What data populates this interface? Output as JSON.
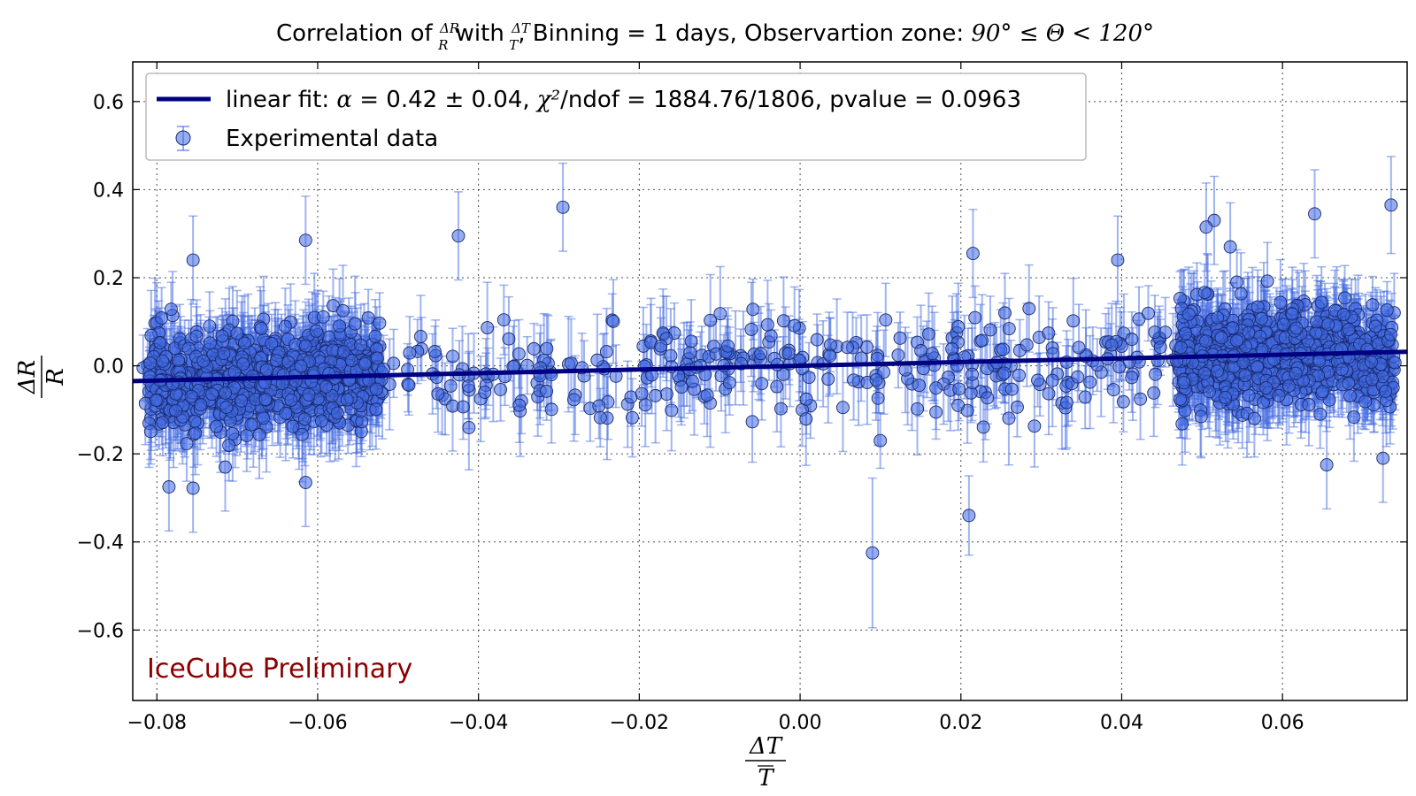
{
  "chart_data": {
    "type": "scatter",
    "title": {
      "prefix": "Correlation of ",
      "frac1_num": "ΔR",
      "frac1_den": "R",
      "with": " with ",
      "frac2_num": "ΔT",
      "frac2_den": "T",
      "middle": ", Binning = 1 days, Observartion zone: ",
      "zone": "90° ≤ Θ < 120°"
    },
    "xlabel": {
      "num": "ΔT",
      "den": "T"
    },
    "ylabel": {
      "num": "ΔR",
      "den": "R"
    },
    "xlim": [
      -0.083,
      0.0755
    ],
    "ylim": [
      -0.76,
      0.69
    ],
    "xticks": [
      -0.08,
      -0.06,
      -0.04,
      -0.02,
      0.0,
      0.02,
      0.04,
      0.06
    ],
    "xtick_labels": [
      "−0.08",
      "−0.06",
      "−0.04",
      "−0.02",
      "0.00",
      "0.02",
      "0.04",
      "0.06"
    ],
    "yticks": [
      0.6,
      0.4,
      0.2,
      0.0,
      -0.2,
      -0.4,
      -0.6
    ],
    "ytick_labels": [
      "0.6",
      "0.4",
      "0.2",
      "0.0",
      "−0.2",
      "−0.4",
      "−0.6"
    ],
    "grid": true,
    "legend_position": "top-left",
    "legend": [
      {
        "name": "linear fit",
        "label_prefix": "linear fit: ",
        "alpha_sym": "α",
        "alpha_text": " = 0.42 ± 0.04, ",
        "chi_sym": "χ²",
        "chi_text": "/ndof = 1884.76/1806, pvalue = 0.0963",
        "color": "#000080"
      },
      {
        "name": "Experimental data",
        "label": "Experimental data",
        "color": "#4169e1"
      }
    ],
    "fit": {
      "slope": 0.42,
      "slope_err": 0.04,
      "intercept": 0.0,
      "chi2": 1884.76,
      "ndof": 1806,
      "pvalue": 0.0963
    },
    "series": [
      {
        "name": "Experimental data",
        "n_points": 1808,
        "x_range": [
          -0.082,
          0.074
        ],
        "y_spread": 0.09,
        "typical_yerr": 0.075,
        "dense_x_ranges": [
          [
            -0.081,
            -0.052
          ],
          [
            0.047,
            0.074
          ]
        ],
        "outliers": [
          {
            "x": -0.0295,
            "y": 0.36,
            "yerr": 0.1
          },
          {
            "x": 0.0735,
            "y": 0.365,
            "yerr": 0.11
          },
          {
            "x": 0.009,
            "y": -0.425,
            "yerr": 0.17
          },
          {
            "x": 0.021,
            "y": -0.34,
            "yerr": 0.09
          },
          {
            "x": -0.0425,
            "y": 0.295,
            "yerr": 0.1
          },
          {
            "x": -0.0615,
            "y": 0.285,
            "yerr": 0.1
          },
          {
            "x": -0.0755,
            "y": 0.24,
            "yerr": 0.1
          },
          {
            "x": 0.0515,
            "y": 0.33,
            "yerr": 0.1
          },
          {
            "x": 0.0505,
            "y": 0.315,
            "yerr": 0.1
          },
          {
            "x": 0.064,
            "y": 0.345,
            "yerr": 0.1
          },
          {
            "x": 0.0395,
            "y": 0.24,
            "yerr": 0.1
          },
          {
            "x": -0.0785,
            "y": -0.275,
            "yerr": 0.1
          },
          {
            "x": -0.0755,
            "y": -0.278,
            "yerr": 0.1
          },
          {
            "x": -0.0615,
            "y": -0.265,
            "yerr": 0.1
          },
          {
            "x": -0.0715,
            "y": -0.23,
            "yerr": 0.1
          },
          {
            "x": 0.0725,
            "y": -0.21,
            "yerr": 0.1
          },
          {
            "x": 0.0655,
            "y": -0.225,
            "yerr": 0.1
          },
          {
            "x": 0.0215,
            "y": 0.255,
            "yerr": 0.1
          },
          {
            "x": 0.0535,
            "y": 0.27,
            "yerr": 0.1
          }
        ],
        "color": "#4169e1"
      }
    ],
    "annotation": {
      "text": "IceCube Preliminary",
      "color": "#8b0000",
      "position": "bottom-left"
    }
  }
}
